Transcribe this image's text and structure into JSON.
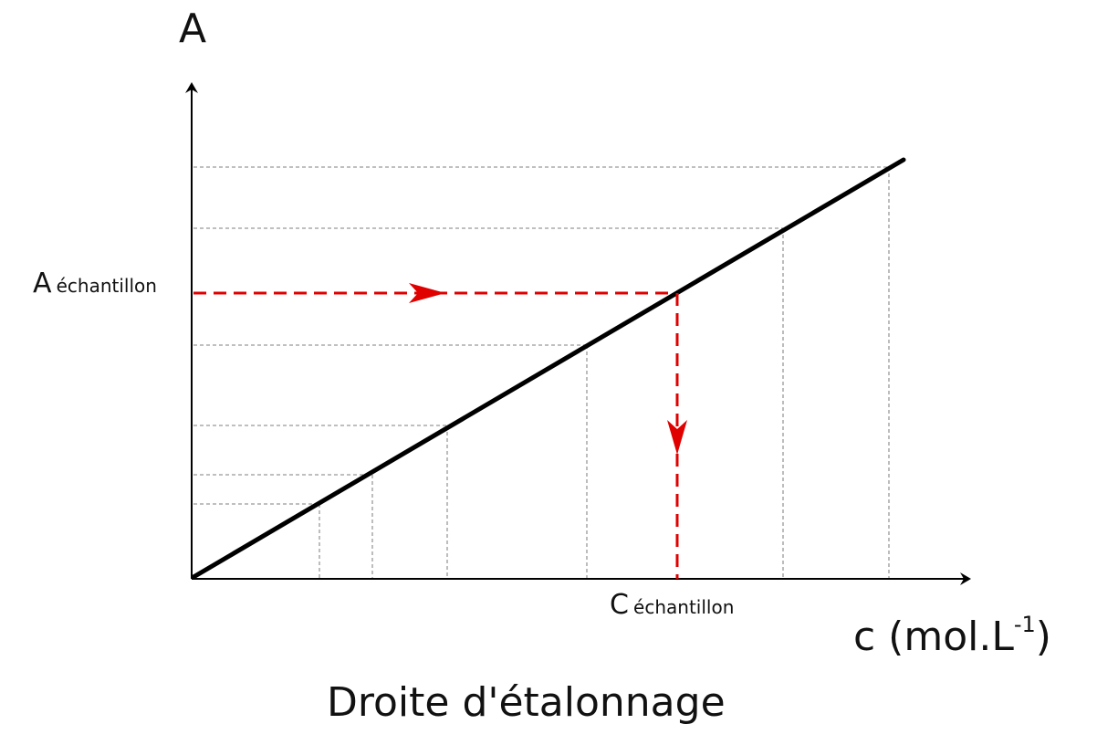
{
  "diagram": {
    "title": "Droite d'étalonnage",
    "y_axis_label": "A",
    "x_axis_label_main": "c (mol.L",
    "x_axis_label_sup": "-1",
    "x_axis_label_close": ")",
    "sample_absorbance_main": "A",
    "sample_absorbance_sub": "échantillon",
    "sample_concentration_main": "C",
    "sample_concentration_sub": "échantillon",
    "colors": {
      "line": "#000000",
      "guides": "#999999",
      "reading": "#e00000"
    },
    "icons": [
      "arrow-right-icon",
      "arrow-down-icon"
    ]
  }
}
